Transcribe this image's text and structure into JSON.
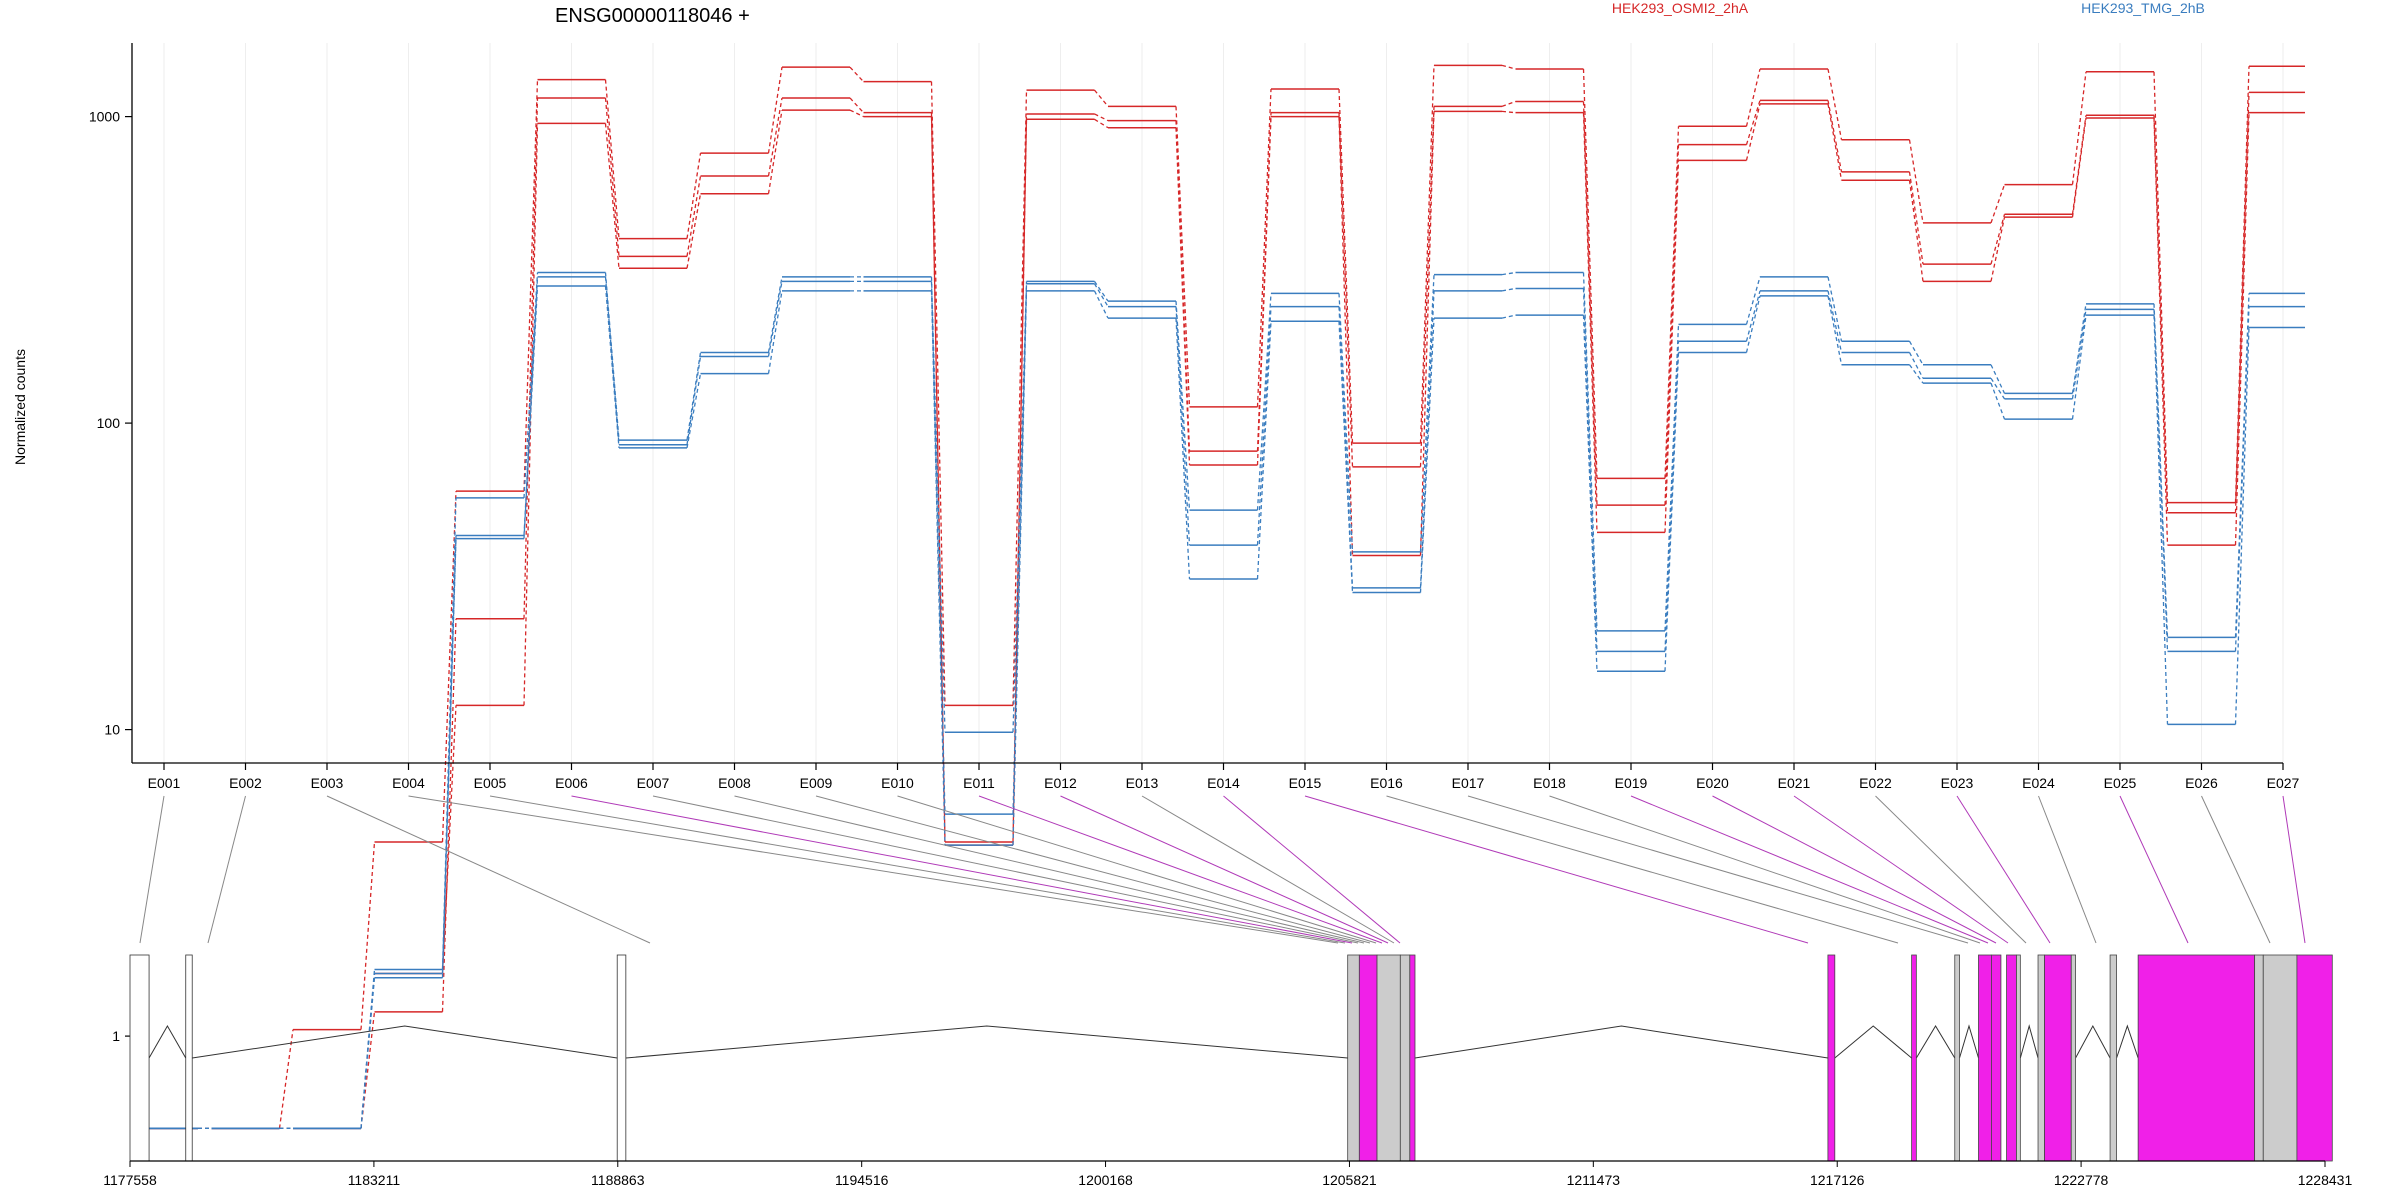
{
  "chart_data": {
    "type": "line",
    "title": "ENSG00000118046 +",
    "ylabel": "Normalized counts",
    "yscale": "log",
    "ylim": [
      0.5,
      2000
    ],
    "yticks": [
      1,
      10,
      100,
      1000
    ],
    "ytick_labels": [
      "1",
      "10",
      "100",
      "1000"
    ],
    "legend_placement": "top-right",
    "categories": [
      "E001",
      "E002",
      "E003",
      "E004",
      "E005",
      "E006",
      "E007",
      "E008",
      "E009",
      "E010",
      "E011",
      "E012",
      "E013",
      "E014",
      "E015",
      "E016",
      "E017",
      "E018",
      "E019",
      "E020",
      "E021",
      "E022",
      "E023",
      "E024",
      "E025",
      "E026",
      "E027"
    ],
    "series": [
      {
        "name": "HEK293_OSMI2_2hA",
        "group": "HEK293_OSMI2_2hA",
        "color": "#d62728",
        "values": [
          0.5,
          0.5,
          0.5,
          1.6,
          12,
          950,
          320,
          560,
          1050,
          1000,
          4.2,
          980,
          920,
          73,
          1000,
          37,
          1040,
          1030,
          44,
          720,
          1100,
          620,
          290,
          470,
          990,
          40,
          1030
        ]
      },
      {
        "group": "HEK293_OSMI2_2hA",
        "color": "#d62728",
        "values": [
          0.5,
          0.5,
          0.5,
          1.2,
          23,
          1150,
          350,
          640,
          1150,
          1030,
          4.3,
          1020,
          970,
          81,
          1030,
          72,
          1080,
          1120,
          54,
          810,
          1130,
          660,
          330,
          480,
          1010,
          51,
          1200
        ]
      },
      {
        "group": "HEK293_OSMI2_2hA",
        "color": "#d62728",
        "values": [
          0.5,
          0.5,
          1.05,
          4.3,
          60,
          1320,
          400,
          760,
          1450,
          1300,
          12,
          1220,
          1080,
          113,
          1230,
          86,
          1470,
          1430,
          66,
          930,
          1430,
          840,
          450,
          600,
          1400,
          55,
          1460
        ]
      },
      {
        "name": "HEK293_TMG_2hB",
        "group": "HEK293_TMG_2hB",
        "color": "#3a7dbf",
        "values": [
          0.5,
          0.5,
          0.5,
          1.55,
          42,
          280,
          83,
          145,
          270,
          270,
          4.2,
          270,
          220,
          31,
          215,
          28,
          220,
          225,
          15.5,
          170,
          260,
          155,
          135,
          103,
          225,
          10.4,
          205
        ]
      },
      {
        "group": "HEK293_TMG_2hB",
        "color": "#3a7dbf",
        "values": [
          0.5,
          0.5,
          0.5,
          1.6,
          43,
          300,
          85,
          165,
          290,
          290,
          5.3,
          285,
          240,
          40,
          240,
          29,
          270,
          275,
          18,
          185,
          270,
          170,
          140,
          120,
          235,
          18,
          240
        ]
      },
      {
        "group": "HEK293_TMG_2hB",
        "color": "#3a7dbf",
        "values": [
          0.5,
          0.5,
          0.5,
          1.65,
          57,
          310,
          88,
          170,
          300,
          300,
          9.8,
          290,
          250,
          52,
          265,
          38,
          305,
          310,
          21,
          210,
          300,
          185,
          155,
          125,
          245,
          20,
          265
        ]
      }
    ],
    "gene_model": {
      "coord_ticks": [
        1177558,
        1183211,
        1188863,
        1194516,
        1200168,
        1205821,
        1211473,
        1217126,
        1222778,
        1228431
      ],
      "exon_colors": {
        "normal": "#cccccc",
        "significant": "#f020e8",
        "outline": "#ffffff"
      }
    }
  }
}
